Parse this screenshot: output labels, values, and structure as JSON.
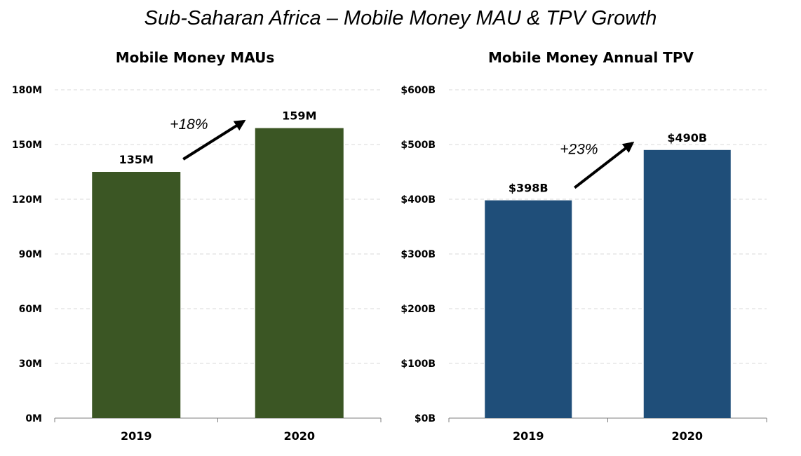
{
  "title": "Sub-Saharan Africa – Mobile Money MAU & TPV Growth",
  "chart_data": [
    {
      "type": "bar",
      "title": "Mobile Money MAUs",
      "categories": [
        "2019",
        "2020"
      ],
      "values": [
        135,
        159
      ],
      "value_labels": [
        "135M",
        "159M"
      ],
      "ylim": [
        0,
        180
      ],
      "yticks": [
        0,
        30,
        60,
        90,
        120,
        150,
        180
      ],
      "ytick_labels": [
        "0M",
        "30M",
        "60M",
        "90M",
        "120M",
        "150M",
        "180M"
      ],
      "growth_label": "+18%",
      "color": "#3b5624",
      "grid": true
    },
    {
      "type": "bar",
      "title": "Mobile Money Annual TPV",
      "categories": [
        "2019",
        "2020"
      ],
      "values": [
        398,
        490
      ],
      "value_labels": [
        "$398B",
        "$490B"
      ],
      "ylim": [
        0,
        600
      ],
      "yticks": [
        0,
        100,
        200,
        300,
        400,
        500,
        600
      ],
      "ytick_labels": [
        "$0B",
        "$100B",
        "$200B",
        "$300B",
        "$400B",
        "$500B",
        "$600B"
      ],
      "growth_label": "+23%",
      "color": "#1f4e79",
      "grid": true
    }
  ]
}
